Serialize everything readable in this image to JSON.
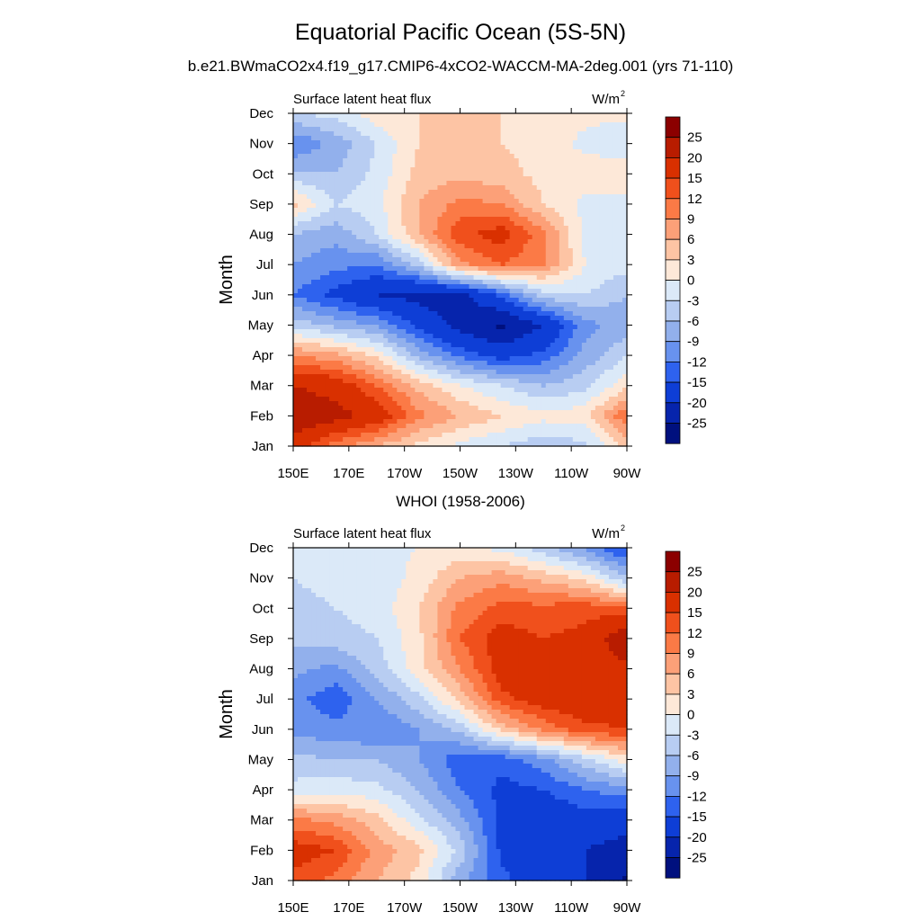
{
  "header": {
    "title": "Equatorial Pacific Ocean (5S-5N)",
    "subtitle": "b.e21.BWmaCO2x4.f19_g17.CMIP6-4xCO2-WACCM-MA-2deg.001 (yrs 71-110)"
  },
  "colorbar": {
    "labels": [
      "25",
      "20",
      "15",
      "12",
      "9",
      "6",
      "3",
      "0",
      "-3",
      "-6",
      "-9",
      "-12",
      "-15",
      "-20",
      "-25"
    ],
    "colors": [
      "#8b0000",
      "#b81c00",
      "#d93000",
      "#f0501c",
      "#fb7a46",
      "#fca078",
      "#fdc4a4",
      "#fde8d8",
      "#dbe9f8",
      "#b8cdf2",
      "#92b0ec",
      "#6892ee",
      "#2e62ee",
      "#0e3ed6",
      "#0624ac",
      "#00107e"
    ]
  },
  "chart_data": [
    {
      "type": "heatmap",
      "title": "",
      "left_label": "Surface latent heat flux",
      "units_label": "W/m",
      "units_sup": "2",
      "ylabel": "Month",
      "xlabel": "",
      "x_ticks": [
        "150E",
        "170E",
        "170W",
        "150W",
        "130W",
        "110W",
        "90W"
      ],
      "x_values": [
        150,
        170,
        190,
        210,
        230,
        250,
        270
      ],
      "y_ticks": [
        "Jan",
        "Feb",
        "Mar",
        "Apr",
        "May",
        "Jun",
        "Jul",
        "Aug",
        "Sep",
        "Oct",
        "Nov",
        "Dec"
      ],
      "levels": [
        -25,
        -20,
        -15,
        -12,
        -9,
        -6,
        -3,
        0,
        3,
        6,
        9,
        12,
        15,
        20,
        25
      ],
      "z": [
        [
          18,
          10,
          6,
          2,
          -1,
          -3,
          -5,
          -4,
          4
        ],
        [
          24,
          22,
          18,
          10,
          6,
          3,
          1,
          2,
          12
        ],
        [
          20,
          18,
          12,
          5,
          0,
          -3,
          -6,
          -4,
          2
        ],
        [
          9,
          7,
          2,
          -7,
          -13,
          -17,
          -14,
          -8,
          -3
        ],
        [
          -4,
          -7,
          -9,
          -16,
          -22,
          -26,
          -20,
          -10,
          -8
        ],
        [
          -12,
          -16,
          -20,
          -22,
          -22,
          -14,
          -4,
          -3,
          -6
        ],
        [
          -9,
          -11,
          -12,
          -5,
          8,
          12,
          9,
          0,
          -2
        ],
        [
          -6,
          -8,
          -3,
          6,
          14,
          17,
          10,
          -1,
          -3
        ],
        [
          4,
          -3,
          -1,
          6,
          10,
          9,
          3,
          -1,
          -2
        ],
        [
          -5,
          -6,
          -2,
          4,
          5,
          4,
          2,
          2,
          3
        ],
        [
          -12,
          -8,
          -3,
          3,
          4,
          3,
          2,
          -1,
          -3
        ],
        [
          -3,
          -2,
          2,
          3,
          3,
          3,
          2,
          1,
          1
        ]
      ]
    },
    {
      "type": "heatmap",
      "title": "WHOI (1958-2006)",
      "left_label": "Surface latent heat flux",
      "units_label": "W/m",
      "units_sup": "2",
      "ylabel": "Month",
      "xlabel": "",
      "x_ticks": [
        "150E",
        "170E",
        "170W",
        "150W",
        "130W",
        "110W",
        "90W"
      ],
      "x_values": [
        150,
        170,
        190,
        210,
        230,
        250,
        270
      ],
      "y_ticks": [
        "Jan",
        "Feb",
        "Mar",
        "Apr",
        "May",
        "Jun",
        "Jul",
        "Aug",
        "Sep",
        "Oct",
        "Nov",
        "Dec"
      ],
      "levels": [
        -25,
        -20,
        -15,
        -12,
        -9,
        -6,
        -3,
        0,
        3,
        6,
        9,
        12,
        15,
        20,
        25
      ],
      "z": [
        [
          14,
          11,
          6,
          2,
          -8,
          -14,
          -18,
          -20,
          -26
        ],
        [
          17,
          15,
          8,
          4,
          -4,
          -16,
          -20,
          -20,
          -22
        ],
        [
          10,
          8,
          4,
          -2,
          -8,
          -16,
          -18,
          -17,
          -18
        ],
        [
          -2,
          -1,
          -2,
          -6,
          -12,
          -16,
          -15,
          -12,
          -10
        ],
        [
          -5,
          -6,
          -6,
          -9,
          -14,
          -14,
          -10,
          -4,
          2
        ],
        [
          -10,
          -11,
          -12,
          -9,
          -5,
          4,
          10,
          14,
          15
        ],
        [
          -11,
          -14,
          -9,
          -4,
          4,
          14,
          17,
          18,
          18
        ],
        [
          -8,
          -10,
          -5,
          2,
          9,
          17,
          20,
          18,
          19
        ],
        [
          -5,
          -4,
          -3,
          2,
          12,
          17,
          15,
          16,
          24
        ],
        [
          -4,
          -3,
          -2,
          3,
          10,
          13,
          13,
          14,
          12
        ],
        [
          -3,
          -2,
          -2,
          1,
          6,
          8,
          5,
          2,
          -6
        ],
        [
          -2,
          -2,
          -1,
          0,
          1,
          -1,
          -5,
          -10,
          -16
        ]
      ]
    }
  ]
}
